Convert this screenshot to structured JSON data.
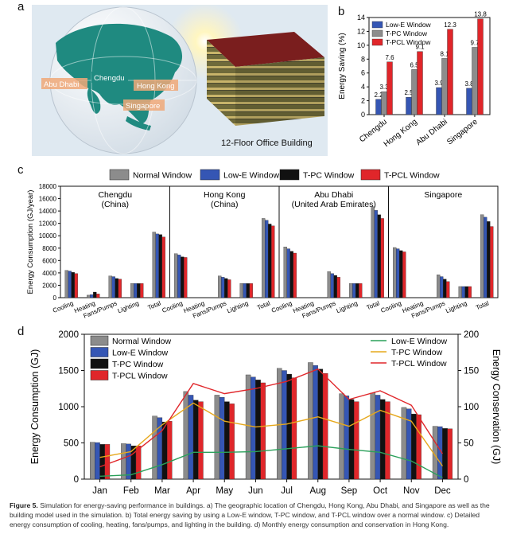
{
  "panels": {
    "a": {
      "label": "a",
      "cities": [
        "Abu Dhabi",
        "Chengdu",
        "Hong Kong",
        "Singapore"
      ],
      "building_label": "12-Floor Office Building"
    },
    "b": {
      "label": "b"
    },
    "c": {
      "label": "c"
    },
    "d": {
      "label": "d"
    }
  },
  "caption": {
    "prefix": "Figure 5.",
    "text": "Simulation for energy-saving performance in buildings. a) The geographic location of Chengdu, Hong Kong, Abu Dhabi, and Singapore as well as the building model used in the simulation. b) Total energy saving by using a Low-E window, T-PC window, and T-PCL window over a normal window. c) Detailed energy consumption of cooling, heating, fans/pumps, and lighting in the building. d) Monthly energy consumption and conservation in Hong Kong."
  },
  "colors": {
    "normal": "#8c8c8c",
    "lowe": "#3556b4",
    "tpc": "#111111",
    "tpcl": "#e0262a",
    "ocean": "#dfe7ee",
    "land": "#1f8a80",
    "city_tag": "#f0a878",
    "line_lowe": "#2aa05a",
    "line_tpc": "#e6a81c",
    "line_tpcl": "#e0262a"
  },
  "chart_data": [
    {
      "id": "b",
      "type": "bar",
      "title": "",
      "xlabel": "",
      "ylabel": "Energy Saving (%)",
      "ylim": [
        0,
        14
      ],
      "yticks": [
        0,
        2,
        4,
        6,
        8,
        10,
        12,
        14
      ],
      "categories": [
        "Chengdu",
        "Hong Kong",
        "Abu Dhabi",
        "Singapore"
      ],
      "legend_position": "top-left",
      "series": [
        {
          "name": "Low-E Window",
          "values": [
            2.2,
            2.5,
            3.9,
            3.8
          ],
          "labels": [
            "2.2",
            "2.5",
            "3.9",
            "3.8"
          ]
        },
        {
          "name": "T-PC Window",
          "values": [
            3.3,
            6.5,
            8.1,
            9.7
          ],
          "labels": [
            "3.3",
            "6.5",
            "8.1",
            "9.7"
          ]
        },
        {
          "name": "T-PCL Window",
          "values": [
            7.6,
            9.1,
            12.3,
            13.8
          ],
          "labels": [
            "7.6",
            "9.1",
            "12.3",
            "13.8"
          ]
        }
      ]
    },
    {
      "id": "c",
      "type": "bar",
      "ylabel": "Energy Consumption (GJ/year)",
      "ylim": [
        0,
        18000
      ],
      "yticks": [
        0,
        2000,
        4000,
        6000,
        8000,
        10000,
        12000,
        14000,
        16000,
        18000
      ],
      "categories": [
        "Cooling",
        "Heating",
        "Fans/Pumps",
        "Lighting",
        "Total"
      ],
      "legend_position": "top",
      "series_names": [
        "Normal Window",
        "Low-E Window",
        "T-PC Window",
        "T-PCL Window"
      ],
      "groups": [
        {
          "name": "Chengdu",
          "sub": "(China)",
          "values": [
            [
              4400,
              4300,
              4100,
              3900
            ],
            [
              400,
              500,
              900,
              600
            ],
            [
              3500,
              3400,
              3100,
              3000
            ],
            [
              2300,
              2300,
              2300,
              2300
            ],
            [
              10600,
              10300,
              10200,
              9800
            ]
          ]
        },
        {
          "name": "Hong Kong",
          "sub": "(China)",
          "values": [
            [
              7100,
              6900,
              6600,
              6500
            ],
            [
              0,
              0,
              0,
              0
            ],
            [
              3500,
              3300,
              3100,
              2900
            ],
            [
              2300,
              2300,
              2300,
              2300
            ],
            [
              12800,
              12500,
              11900,
              11600
            ]
          ]
        },
        {
          "name": "Abu Dhabi",
          "sub": "(United Arab Emirates)",
          "values": [
            [
              8200,
              7900,
              7500,
              7200
            ],
            [
              0,
              0,
              0,
              0
            ],
            [
              4200,
              3900,
              3600,
              3300
            ],
            [
              2300,
              2300,
              2300,
              2300
            ],
            [
              14700,
              14100,
              13400,
              12800
            ]
          ]
        },
        {
          "name": "Singapore",
          "sub": "",
          "values": [
            [
              8100,
              7900,
              7600,
              7400
            ],
            [
              0,
              0,
              0,
              0
            ],
            [
              3700,
              3400,
              3000,
              2600
            ],
            [
              1800,
              1800,
              1800,
              1800
            ],
            [
              13400,
              13000,
              12300,
              11500
            ]
          ]
        }
      ]
    },
    {
      "id": "d",
      "type": "bar",
      "ylabel": "Energy Consumption (GJ)",
      "y2label": "Energy Conservation (GJ)",
      "ylim": [
        0,
        2000
      ],
      "yticks": [
        0,
        500,
        1000,
        1500,
        2000
      ],
      "y2lim": [
        0,
        200
      ],
      "y2ticks": [
        0,
        50,
        100,
        150,
        200
      ],
      "categories": [
        "Jan",
        "Feb",
        "Mar",
        "Apr",
        "May",
        "Jun",
        "Jul",
        "Aug",
        "Sep",
        "Oct",
        "Nov",
        "Dec"
      ],
      "legend_position": "top-left",
      "line_legend_position": "top-right",
      "series": [
        {
          "name": "Normal Window",
          "values": [
            510,
            490,
            870,
            1210,
            1160,
            1440,
            1530,
            1610,
            1180,
            1190,
            990,
            730
          ]
        },
        {
          "name": "Low-E Window",
          "values": [
            505,
            485,
            850,
            1160,
            1130,
            1410,
            1500,
            1570,
            1150,
            1160,
            970,
            725
          ]
        },
        {
          "name": "T-PC Window",
          "values": [
            480,
            460,
            790,
            1090,
            1070,
            1370,
            1450,
            1520,
            1100,
            1100,
            900,
            700
          ]
        },
        {
          "name": "T-PCL Window",
          "values": [
            480,
            460,
            800,
            1070,
            1040,
            1330,
            1400,
            1460,
            1070,
            1070,
            890,
            695
          ]
        }
      ],
      "lines": [
        {
          "name": "Low-E Window",
          "values": [
            4,
            6,
            20,
            37,
            37,
            38,
            42,
            46,
            41,
            37,
            25,
            2
          ]
        },
        {
          "name": "T-PC Window",
          "values": [
            30,
            38,
            75,
            105,
            80,
            72,
            76,
            86,
            73,
            95,
            80,
            18
          ]
        },
        {
          "name": "T-PCL Window",
          "values": [
            17,
            33,
            67,
            132,
            118,
            125,
            135,
            152,
            110,
            122,
            102,
            35
          ]
        }
      ]
    }
  ]
}
